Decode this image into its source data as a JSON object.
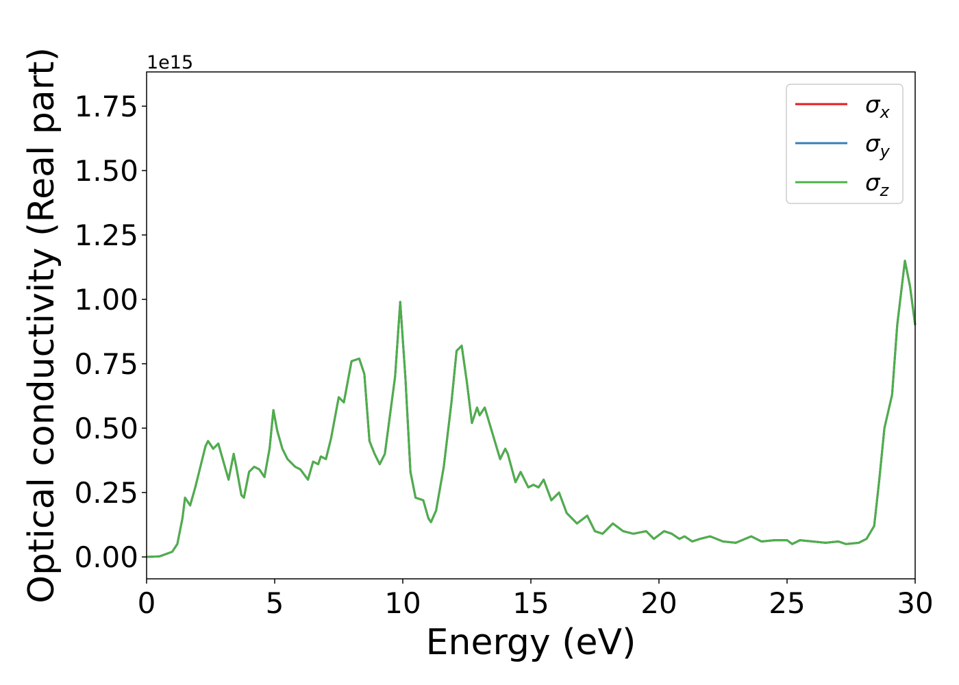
{
  "chart_data": {
    "type": "line",
    "xlabel": "Energy (eV)",
    "ylabel": "Optical conductivity (Real part)",
    "offset_text": "1e15",
    "xlim": [
      0,
      30
    ],
    "ylim": [
      -0.085,
      1.883
    ],
    "xticks": [
      0,
      5,
      10,
      15,
      20,
      25,
      30
    ],
    "yticks": [
      {
        "value": 0,
        "label": "0.00"
      },
      {
        "value": 0.25,
        "label": "0.25"
      },
      {
        "value": 0.5,
        "label": "0.50"
      },
      {
        "value": 0.75,
        "label": "0.75"
      },
      {
        "value": 1,
        "label": "1.00"
      },
      {
        "value": 1.25,
        "label": "1.25"
      },
      {
        "value": 1.5,
        "label": "1.50"
      },
      {
        "value": 1.75,
        "label": "1.75"
      }
    ],
    "legend": "upper right",
    "x": [
      0,
      0.5,
      1.0,
      1.2,
      1.4,
      1.5,
      1.7,
      1.9,
      2.1,
      2.3,
      2.4,
      2.6,
      2.8,
      3.0,
      3.2,
      3.4,
      3.5,
      3.7,
      3.8,
      4.0,
      4.2,
      4.4,
      4.6,
      4.8,
      4.95,
      5.1,
      5.3,
      5.5,
      5.8,
      6.0,
      6.3,
      6.5,
      6.7,
      6.8,
      7.0,
      7.2,
      7.5,
      7.7,
      8.0,
      8.3,
      8.5,
      8.7,
      8.9,
      9.1,
      9.3,
      9.5,
      9.7,
      9.9,
      10.1,
      10.3,
      10.5,
      10.8,
      11.0,
      11.1,
      11.3,
      11.6,
      11.9,
      12.1,
      12.3,
      12.5,
      12.7,
      12.9,
      13.0,
      13.2,
      13.5,
      13.8,
      14.0,
      14.1,
      14.4,
      14.6,
      14.9,
      15.1,
      15.3,
      15.5,
      15.8,
      16.1,
      16.4,
      16.8,
      17.2,
      17.5,
      17.8,
      18.2,
      18.6,
      19.0,
      19.5,
      19.8,
      20.2,
      20.5,
      20.8,
      21.0,
      21.3,
      21.6,
      22.0,
      22.5,
      23.0,
      23.6,
      24.0,
      24.5,
      25.0,
      25.2,
      25.5,
      26.0,
      26.5,
      27.0,
      27.3,
      27.8,
      28.1,
      28.4,
      28.6,
      28.8,
      29.1,
      29.3,
      29.6,
      29.8,
      30
    ],
    "series": [
      {
        "name": "σx",
        "color": "#e41a1c",
        "values": [
          0,
          0.002,
          0.02,
          0.05,
          0.15,
          0.23,
          0.2,
          0.27,
          0.35,
          0.43,
          0.45,
          0.42,
          0.44,
          0.37,
          0.3,
          0.4,
          0.35,
          0.24,
          0.23,
          0.33,
          0.35,
          0.34,
          0.31,
          0.42,
          0.57,
          0.49,
          0.42,
          0.38,
          0.35,
          0.34,
          0.3,
          0.37,
          0.36,
          0.39,
          0.38,
          0.46,
          0.62,
          0.6,
          0.76,
          0.77,
          0.71,
          0.45,
          0.4,
          0.36,
          0.4,
          0.55,
          0.7,
          0.99,
          0.7,
          0.33,
          0.23,
          0.22,
          0.15,
          0.135,
          0.18,
          0.35,
          0.6,
          0.8,
          0.82,
          0.68,
          0.52,
          0.58,
          0.55,
          0.58,
          0.48,
          0.38,
          0.42,
          0.4,
          0.29,
          0.33,
          0.27,
          0.28,
          0.27,
          0.3,
          0.22,
          0.25,
          0.17,
          0.13,
          0.16,
          0.1,
          0.09,
          0.13,
          0.1,
          0.09,
          0.1,
          0.07,
          0.1,
          0.09,
          0.07,
          0.08,
          0.06,
          0.07,
          0.08,
          0.06,
          0.055,
          0.08,
          0.06,
          0.065,
          0.065,
          0.05,
          0.065,
          0.06,
          0.055,
          0.06,
          0.05,
          0.055,
          0.07,
          0.12,
          0.3,
          0.5,
          0.63,
          0.9,
          1.15,
          1.05,
          0.9
        ]
      },
      {
        "name": "σy",
        "color": "#377eb8",
        "values": [
          0,
          0.002,
          0.02,
          0.05,
          0.15,
          0.23,
          0.2,
          0.27,
          0.35,
          0.43,
          0.45,
          0.42,
          0.44,
          0.37,
          0.3,
          0.4,
          0.35,
          0.24,
          0.23,
          0.33,
          0.35,
          0.34,
          0.31,
          0.42,
          0.57,
          0.49,
          0.42,
          0.38,
          0.35,
          0.34,
          0.3,
          0.37,
          0.36,
          0.39,
          0.38,
          0.46,
          0.62,
          0.6,
          0.76,
          0.77,
          0.71,
          0.45,
          0.4,
          0.36,
          0.4,
          0.55,
          0.7,
          0.99,
          0.7,
          0.33,
          0.23,
          0.22,
          0.15,
          0.135,
          0.18,
          0.35,
          0.6,
          0.8,
          0.82,
          0.68,
          0.52,
          0.58,
          0.55,
          0.58,
          0.48,
          0.38,
          0.42,
          0.4,
          0.29,
          0.33,
          0.27,
          0.28,
          0.27,
          0.3,
          0.22,
          0.25,
          0.17,
          0.13,
          0.16,
          0.1,
          0.09,
          0.13,
          0.1,
          0.09,
          0.1,
          0.07,
          0.1,
          0.09,
          0.07,
          0.08,
          0.06,
          0.07,
          0.08,
          0.06,
          0.055,
          0.08,
          0.06,
          0.065,
          0.065,
          0.05,
          0.065,
          0.06,
          0.055,
          0.06,
          0.05,
          0.055,
          0.07,
          0.12,
          0.3,
          0.5,
          0.63,
          0.9,
          1.15,
          1.05,
          0.9
        ]
      },
      {
        "name": "σz",
        "color": "#4daf4a",
        "values": [
          0,
          0.002,
          0.02,
          0.05,
          0.15,
          0.23,
          0.2,
          0.27,
          0.35,
          0.43,
          0.45,
          0.42,
          0.44,
          0.37,
          0.3,
          0.4,
          0.35,
          0.24,
          0.23,
          0.33,
          0.35,
          0.34,
          0.31,
          0.42,
          0.57,
          0.49,
          0.42,
          0.38,
          0.35,
          0.34,
          0.3,
          0.37,
          0.36,
          0.39,
          0.38,
          0.46,
          0.62,
          0.6,
          0.76,
          0.77,
          0.71,
          0.45,
          0.4,
          0.36,
          0.4,
          0.55,
          0.7,
          0.99,
          0.7,
          0.33,
          0.23,
          0.22,
          0.15,
          0.135,
          0.18,
          0.35,
          0.6,
          0.8,
          0.82,
          0.68,
          0.52,
          0.58,
          0.55,
          0.58,
          0.48,
          0.38,
          0.42,
          0.4,
          0.29,
          0.33,
          0.27,
          0.28,
          0.27,
          0.3,
          0.22,
          0.25,
          0.17,
          0.13,
          0.16,
          0.1,
          0.09,
          0.13,
          0.1,
          0.09,
          0.1,
          0.07,
          0.1,
          0.09,
          0.07,
          0.08,
          0.06,
          0.07,
          0.08,
          0.06,
          0.055,
          0.08,
          0.06,
          0.065,
          0.065,
          0.05,
          0.065,
          0.06,
          0.055,
          0.06,
          0.05,
          0.055,
          0.07,
          0.12,
          0.3,
          0.5,
          0.63,
          0.9,
          1.15,
          1.05,
          0.9
        ]
      }
    ]
  }
}
